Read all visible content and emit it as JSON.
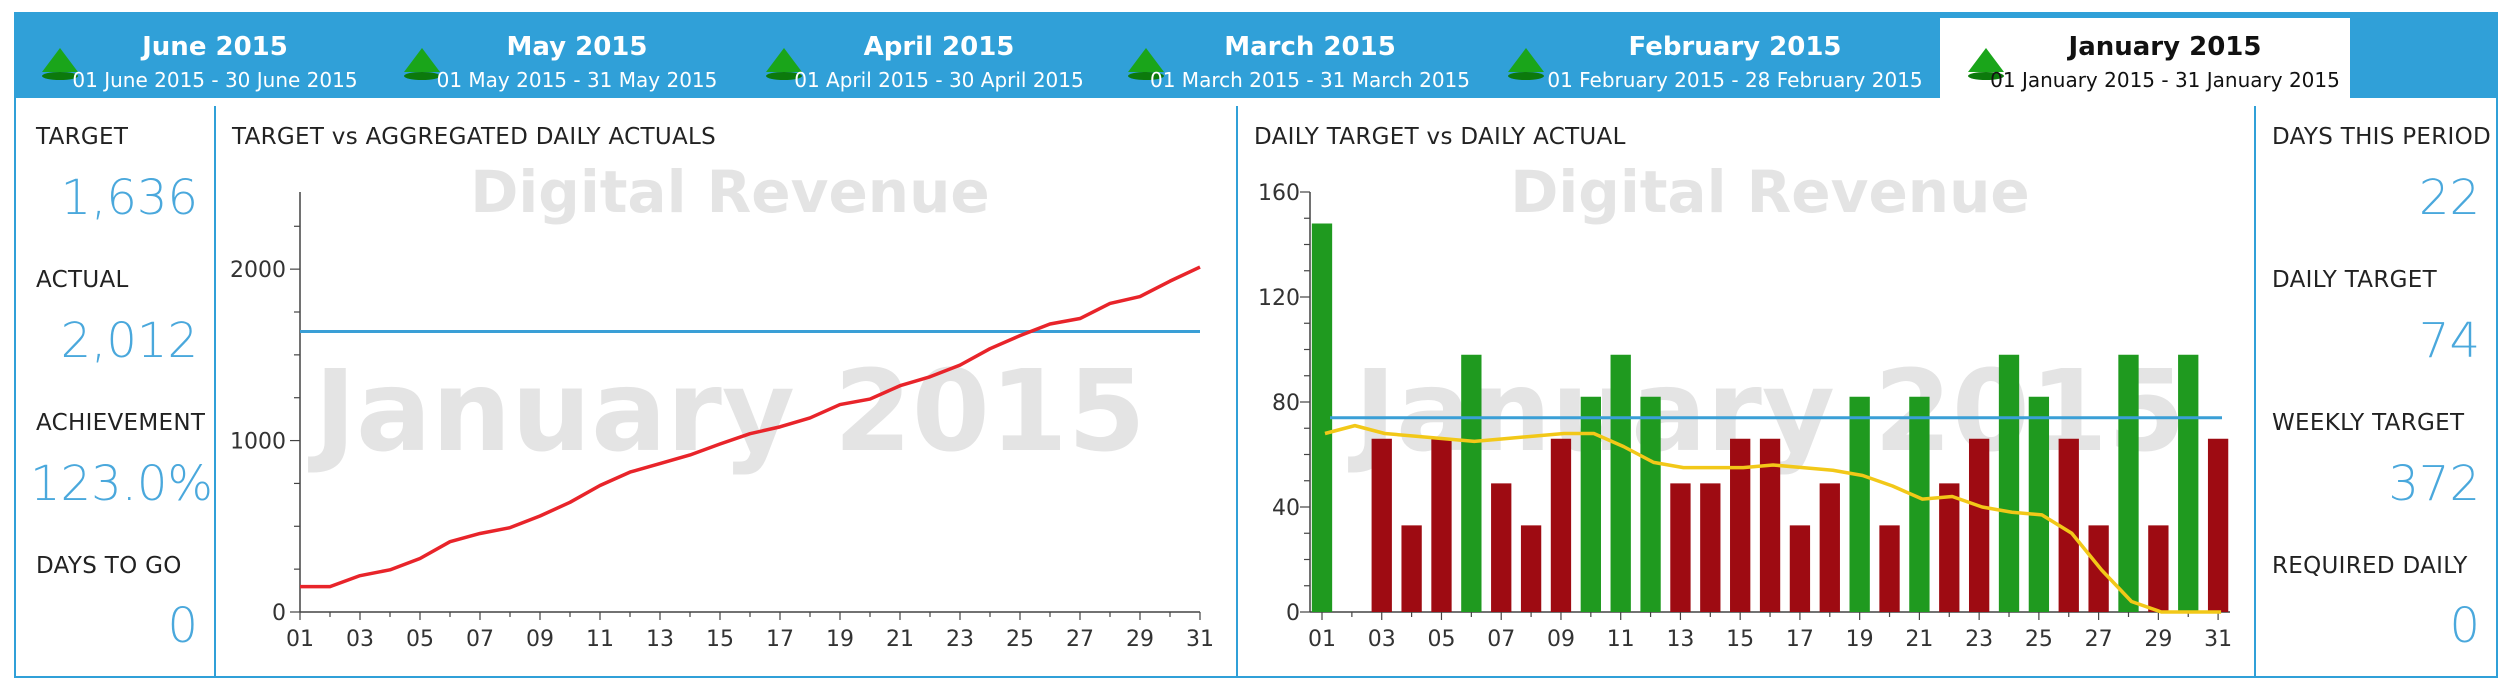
{
  "tabs": [
    {
      "title": "June 2015",
      "range": "01 June 2015  -  30 June 2015",
      "selected": false
    },
    {
      "title": "May 2015",
      "range": "01 May 2015  -  31 May 2015",
      "selected": false
    },
    {
      "title": "April 2015",
      "range": "01 April 2015  -  30 April 2015",
      "selected": false
    },
    {
      "title": "March 2015",
      "range": "01 March 2015  -  31 March 2015",
      "selected": false
    },
    {
      "title": "February 2015",
      "range": "01 February 2015  -  28 February 2015",
      "selected": false
    },
    {
      "title": "January 2015",
      "range": "01 January 2015  -  31 January 2015",
      "selected": true
    }
  ],
  "left_kpis": [
    {
      "label": "TARGET",
      "value": "1,636"
    },
    {
      "label": "ACTUAL",
      "value": "2,012"
    },
    {
      "label": "ACHIEVEMENT",
      "value": "123.0%"
    },
    {
      "label": "DAYS TO GO",
      "value": "0"
    }
  ],
  "right_kpis": [
    {
      "label": "DAYS THIS PERIOD",
      "value": "22"
    },
    {
      "label": "DAILY TARGET",
      "value": "74"
    },
    {
      "label": "WEEKLY TARGET",
      "value": "372"
    },
    {
      "label": "REQUIRED DAILY",
      "value": "0"
    }
  ],
  "colors": {
    "accent": "#30a0d8",
    "kpi_value": "#4aa8dc",
    "cumulative_line": "#e8242a",
    "target_line": "#3a9fd6",
    "bar_above": "#1f9a1f",
    "bar_below": "#9e0b12",
    "avg_line": "#f2c818",
    "watermark": "#e4e4e4"
  },
  "chart_data": [
    {
      "type": "line",
      "title": "TARGET vs AGGREGATED DAILY ACTUALS",
      "watermark_top": "Digital Revenue",
      "watermark_center": "January 2015",
      "x": [
        1,
        2,
        3,
        4,
        5,
        6,
        7,
        8,
        9,
        10,
        11,
        12,
        13,
        14,
        15,
        16,
        17,
        18,
        19,
        20,
        21,
        22,
        23,
        24,
        25,
        26,
        27,
        28,
        29,
        30,
        31
      ],
      "x_tick_labels": [
        "01",
        "03",
        "05",
        "07",
        "09",
        "11",
        "13",
        "15",
        "17",
        "19",
        "21",
        "23",
        "25",
        "27",
        "29",
        "31"
      ],
      "y_ticks": [
        0,
        1000,
        2000
      ],
      "ylim": [
        0,
        2450
      ],
      "series": [
        {
          "values": [
            148,
            148,
            212,
            246,
            312,
            410,
            458,
            492,
            560,
            640,
            738,
            816,
            866,
            916,
            980,
            1040,
            1080,
            1132,
            1210,
            1242,
            1320,
            1372,
            1440,
            1536,
            1612,
            1680,
            1712,
            1800,
            1840,
            1930,
            2012
          ]
        }
      ],
      "target": 1636
    },
    {
      "type": "bar",
      "title": "DAILY TARGET vs DAILY ACTUAL",
      "watermark_top": "Digital Revenue",
      "watermark_center": "January 2015",
      "x": [
        1,
        2,
        3,
        4,
        5,
        6,
        7,
        8,
        9,
        10,
        11,
        12,
        13,
        14,
        15,
        16,
        17,
        18,
        19,
        20,
        21,
        22,
        23,
        24,
        25,
        26,
        27,
        28,
        29,
        30,
        31
      ],
      "x_tick_labels": [
        "01",
        "03",
        "05",
        "07",
        "09",
        "11",
        "13",
        "15",
        "17",
        "19",
        "21",
        "23",
        "25",
        "27",
        "29",
        "31"
      ],
      "y_ticks": [
        0,
        40,
        80,
        120,
        160
      ],
      "ylim": [
        0,
        160
      ],
      "values": [
        148,
        0,
        66,
        33,
        66,
        98,
        49,
        33,
        66,
        82,
        98,
        82,
        49,
        49,
        66,
        66,
        33,
        49,
        82,
        33,
        82,
        49,
        66,
        98,
        82,
        66,
        33,
        98,
        33,
        98,
        66
      ],
      "target": 74,
      "required_daily": [
        68,
        71,
        68,
        67,
        66,
        65,
        66,
        67,
        68,
        68,
        63,
        57,
        55,
        55,
        55,
        56,
        55,
        54,
        52,
        48,
        43,
        44,
        40,
        38,
        37,
        30,
        16,
        4,
        0,
        0,
        0
      ]
    }
  ]
}
